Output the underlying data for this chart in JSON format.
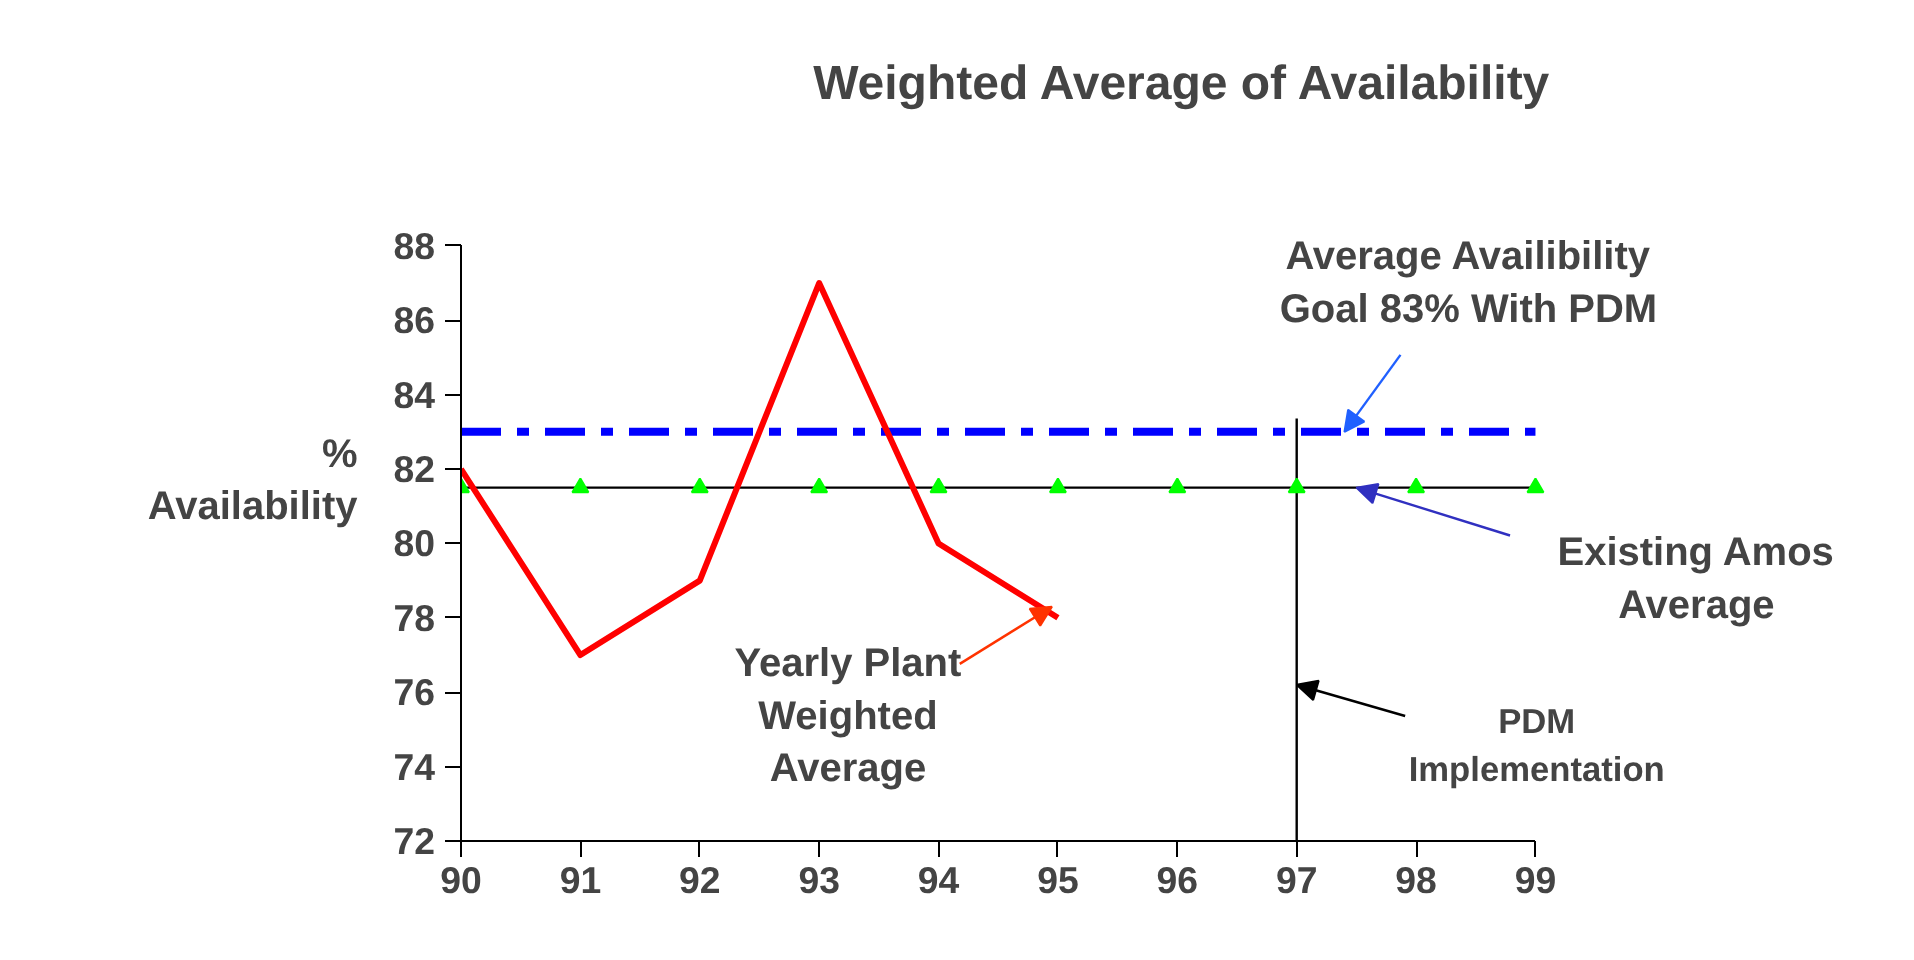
{
  "chart_data": {
    "type": "line",
    "title": "Weighted Average of Availability",
    "ylabel": "%\nAvailability",
    "x": [
      90,
      91,
      92,
      93,
      94,
      95,
      96,
      97,
      98,
      99
    ],
    "series": [
      {
        "color": "#ff0000",
        "values": [
          82,
          77,
          79,
          87,
          80,
          78,
          null,
          null,
          null,
          null
        ]
      },
      {
        "type": "scatter",
        "color": "#00ff00",
        "marker": "triangle",
        "values": [
          81.5,
          81.5,
          81.5,
          81.5,
          81.5,
          81.5,
          81.5,
          81.5,
          81.5,
          81.5
        ]
      }
    ],
    "ref_lines": [
      {
        "axis": "y",
        "value": 83,
        "color": "#0000ff",
        "line_style": "dashdot"
      },
      {
        "axis": "y",
        "value": 81.5,
        "color": "#000000",
        "line_style": "solid"
      },
      {
        "axis": "x",
        "value": 97,
        "color": "#000000",
        "line_style": "solid"
      }
    ],
    "annotations": [
      {
        "text": "Average Availibility\nGoal 83% With PDM",
        "x": 97.4,
        "y": 83
      },
      {
        "text": "Existing Amos\nAverage",
        "x": 97.5,
        "y": 81.5
      },
      {
        "text": "PDM\nImplementation",
        "x": 97,
        "y": 76.2
      },
      {
        "text": "Yearly Plant\nWeighted\nAverage",
        "x": 94.95,
        "y": 78.3
      }
    ],
    "xlim": [
      90,
      99
    ],
    "xticks": [
      90,
      91,
      92,
      93,
      94,
      95,
      96,
      97,
      98,
      99
    ],
    "ylim": [
      72,
      88
    ],
    "yticks": [
      72,
      74,
      76,
      78,
      80,
      82,
      84,
      86,
      88
    ],
    "grid": false,
    "marker": "none"
  }
}
